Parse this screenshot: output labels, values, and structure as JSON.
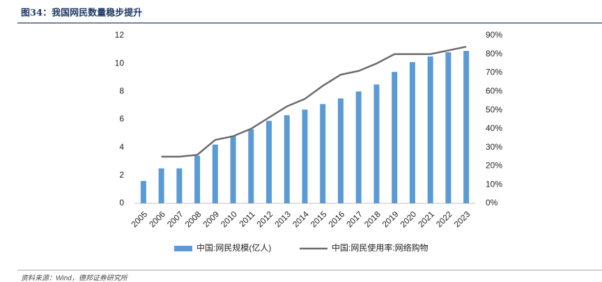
{
  "chart_data": {
    "type": "bar",
    "title": "图34：我国网民数量稳步提升",
    "source": "资料来源：Wind，德邦证券研究所",
    "categories": [
      "2005",
      "2006",
      "2007",
      "2008",
      "2009",
      "2010",
      "2011",
      "2012",
      "2013",
      "2014",
      "2015",
      "2016",
      "2017",
      "2018",
      "2019",
      "2020",
      "2021",
      "2022",
      "2023"
    ],
    "series": [
      {
        "name": "中国:网民规模(亿人)",
        "type": "bar",
        "color": "#5b9bd5",
        "values": [
          1.6,
          2.5,
          2.5,
          3.4,
          4.2,
          4.8,
          5.3,
          5.9,
          6.3,
          6.7,
          7.1,
          7.5,
          8.0,
          8.5,
          9.4,
          10.1,
          10.5,
          10.8,
          10.9
        ]
      },
      {
        "name": "中国:网民使用率:网络购物",
        "type": "line",
        "axis": "y2",
        "color": "#6b6b6b",
        "values": [
          null,
          25,
          25,
          26,
          34,
          36,
          40,
          46,
          52,
          56,
          63,
          69,
          71,
          75,
          80,
          80,
          80,
          82,
          84
        ]
      }
    ],
    "ylim": [
      0,
      12
    ],
    "yticks": [
      0,
      2,
      4,
      6,
      8,
      10,
      12
    ],
    "y2lim": [
      0,
      90
    ],
    "y2ticks": [
      {
        "value": 0,
        "label": "0%"
      },
      {
        "value": 10,
        "label": "10%"
      },
      {
        "value": 20,
        "label": "20%"
      },
      {
        "value": 30,
        "label": "30%"
      },
      {
        "value": 40,
        "label": "40%"
      },
      {
        "value": 50,
        "label": "50%"
      },
      {
        "value": 60,
        "label": "60%"
      },
      {
        "value": 70,
        "label": "70%"
      },
      {
        "value": 80,
        "label": "80%"
      },
      {
        "value": 90,
        "label": "90%"
      }
    ],
    "legend": "bottom"
  }
}
